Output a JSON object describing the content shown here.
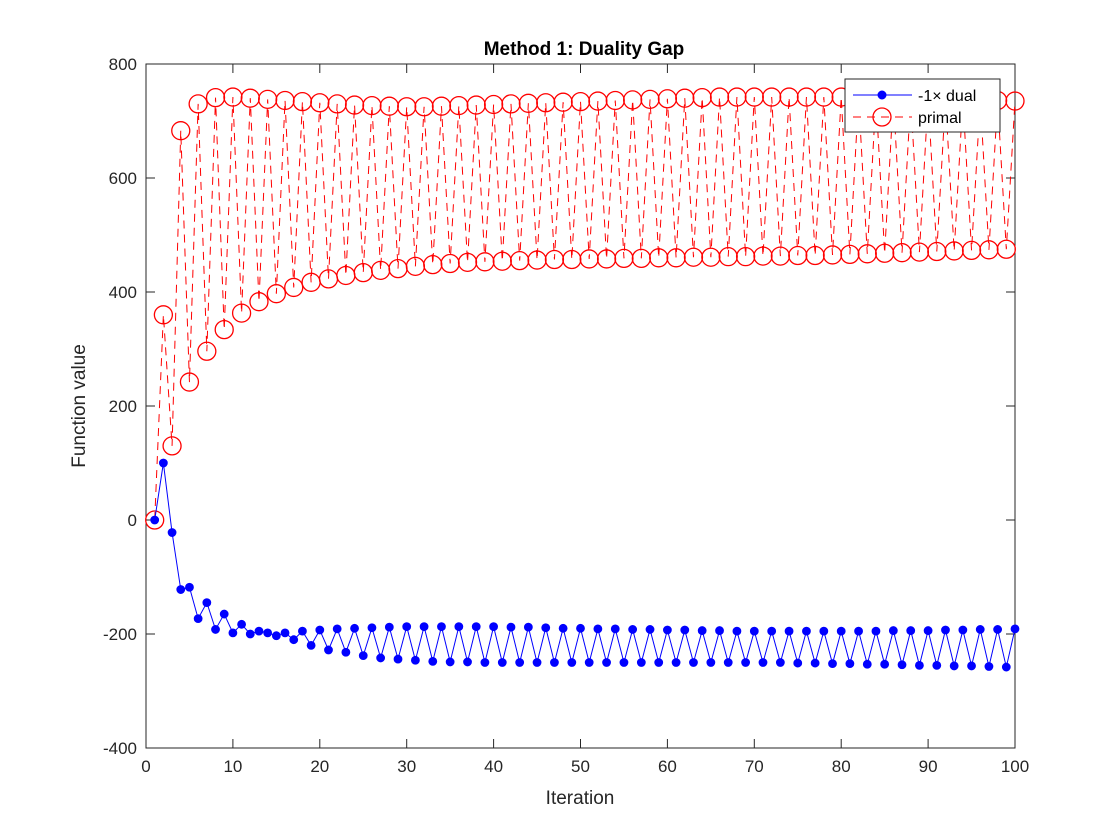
{
  "chart_data": {
    "type": "line",
    "title": "Method 1: Duality Gap",
    "xlabel": "Iteration",
    "ylabel": "Function value",
    "xlim": [
      0,
      100
    ],
    "ylim": [
      -400,
      800
    ],
    "xticks": [
      0,
      10,
      20,
      30,
      40,
      50,
      60,
      70,
      80,
      90,
      100
    ],
    "yticks": [
      -400,
      -200,
      0,
      200,
      400,
      600,
      800
    ],
    "grid": false,
    "legend_position": "top-right",
    "series": [
      {
        "name": "-1× dual",
        "color": "#0000ff",
        "style": "solid line with filled circle markers",
        "x": [
          1,
          2,
          3,
          4,
          5,
          6,
          7,
          8,
          9,
          10,
          11,
          12,
          13,
          14,
          15,
          16,
          17,
          18,
          19,
          20,
          21,
          22,
          23,
          24,
          25,
          26,
          27,
          28,
          29,
          30,
          31,
          32,
          33,
          34,
          35,
          36,
          37,
          38,
          39,
          40,
          41,
          42,
          43,
          44,
          45,
          46,
          47,
          48,
          49,
          50,
          51,
          52,
          53,
          54,
          55,
          56,
          57,
          58,
          59,
          60,
          61,
          62,
          63,
          64,
          65,
          66,
          67,
          68,
          69,
          70,
          71,
          72,
          73,
          74,
          75,
          76,
          77,
          78,
          79,
          80,
          81,
          82,
          83,
          84,
          85,
          86,
          87,
          88,
          89,
          90,
          91,
          92,
          93,
          94,
          95,
          96,
          97,
          98,
          99,
          100
        ],
        "values": [
          0,
          100,
          -22,
          -122,
          -118,
          -173,
          -145,
          -192,
          -165,
          -198,
          -183,
          -200,
          -195,
          -198,
          -203,
          -198,
          -210,
          -195,
          -220,
          -193,
          -228,
          -191,
          -232,
          -190,
          -238,
          -189,
          -242,
          -188,
          -244,
          -187,
          -246,
          -187,
          -248,
          -187,
          -249,
          -187,
          -249,
          -187,
          -250,
          -187,
          -250,
          -188,
          -250,
          -188,
          -250,
          -189,
          -250,
          -190,
          -250,
          -190,
          -250,
          -191,
          -250,
          -191,
          -250,
          -192,
          -250,
          -192,
          -250,
          -193,
          -250,
          -193,
          -250,
          -194,
          -250,
          -194,
          -250,
          -195,
          -250,
          -195,
          -250,
          -195,
          -250,
          -195,
          -251,
          -195,
          -251,
          -195,
          -252,
          -195,
          -252,
          -195,
          -253,
          -195,
          -253,
          -194,
          -254,
          -194,
          -255,
          -194,
          -255,
          -193,
          -256,
          -193,
          -256,
          -192,
          -257,
          -192,
          -258,
          -191
        ]
      },
      {
        "name": "primal",
        "color": "#ff0000",
        "style": "dashed line with open circle markers",
        "x": [
          1,
          2,
          3,
          4,
          5,
          6,
          7,
          8,
          9,
          10,
          11,
          12,
          13,
          14,
          15,
          16,
          17,
          18,
          19,
          20,
          21,
          22,
          23,
          24,
          25,
          26,
          27,
          28,
          29,
          30,
          31,
          32,
          33,
          34,
          35,
          36,
          37,
          38,
          39,
          40,
          41,
          42,
          43,
          44,
          45,
          46,
          47,
          48,
          49,
          50,
          51,
          52,
          53,
          54,
          55,
          56,
          57,
          58,
          59,
          60,
          61,
          62,
          63,
          64,
          65,
          66,
          67,
          68,
          69,
          70,
          71,
          72,
          73,
          74,
          75,
          76,
          77,
          78,
          79,
          80,
          81,
          82,
          83,
          84,
          85,
          86,
          87,
          88,
          89,
          90,
          91,
          92,
          93,
          94,
          95,
          96,
          97,
          98,
          99,
          100
        ],
        "values": [
          0,
          360,
          130,
          683,
          242,
          730,
          296,
          741,
          334,
          742,
          363,
          740,
          383,
          738,
          397,
          736,
          408,
          734,
          417,
          732,
          423,
          730,
          429,
          728,
          434,
          727,
          438,
          726,
          441,
          725,
          445,
          725,
          448,
          726,
          450,
          727,
          452,
          728,
          453,
          729,
          454,
          730,
          455,
          731,
          456,
          732,
          457,
          733,
          457,
          734,
          458,
          735,
          458,
          736,
          459,
          737,
          459,
          738,
          460,
          739,
          460,
          740,
          461,
          741,
          461,
          742,
          462,
          742,
          462,
          742,
          463,
          742,
          463,
          742,
          464,
          742,
          464,
          742,
          465,
          742,
          466,
          742,
          467,
          741,
          468,
          741,
          469,
          740,
          470,
          740,
          471,
          739,
          472,
          738,
          473,
          737,
          474,
          736,
          475,
          735
        ]
      }
    ]
  }
}
